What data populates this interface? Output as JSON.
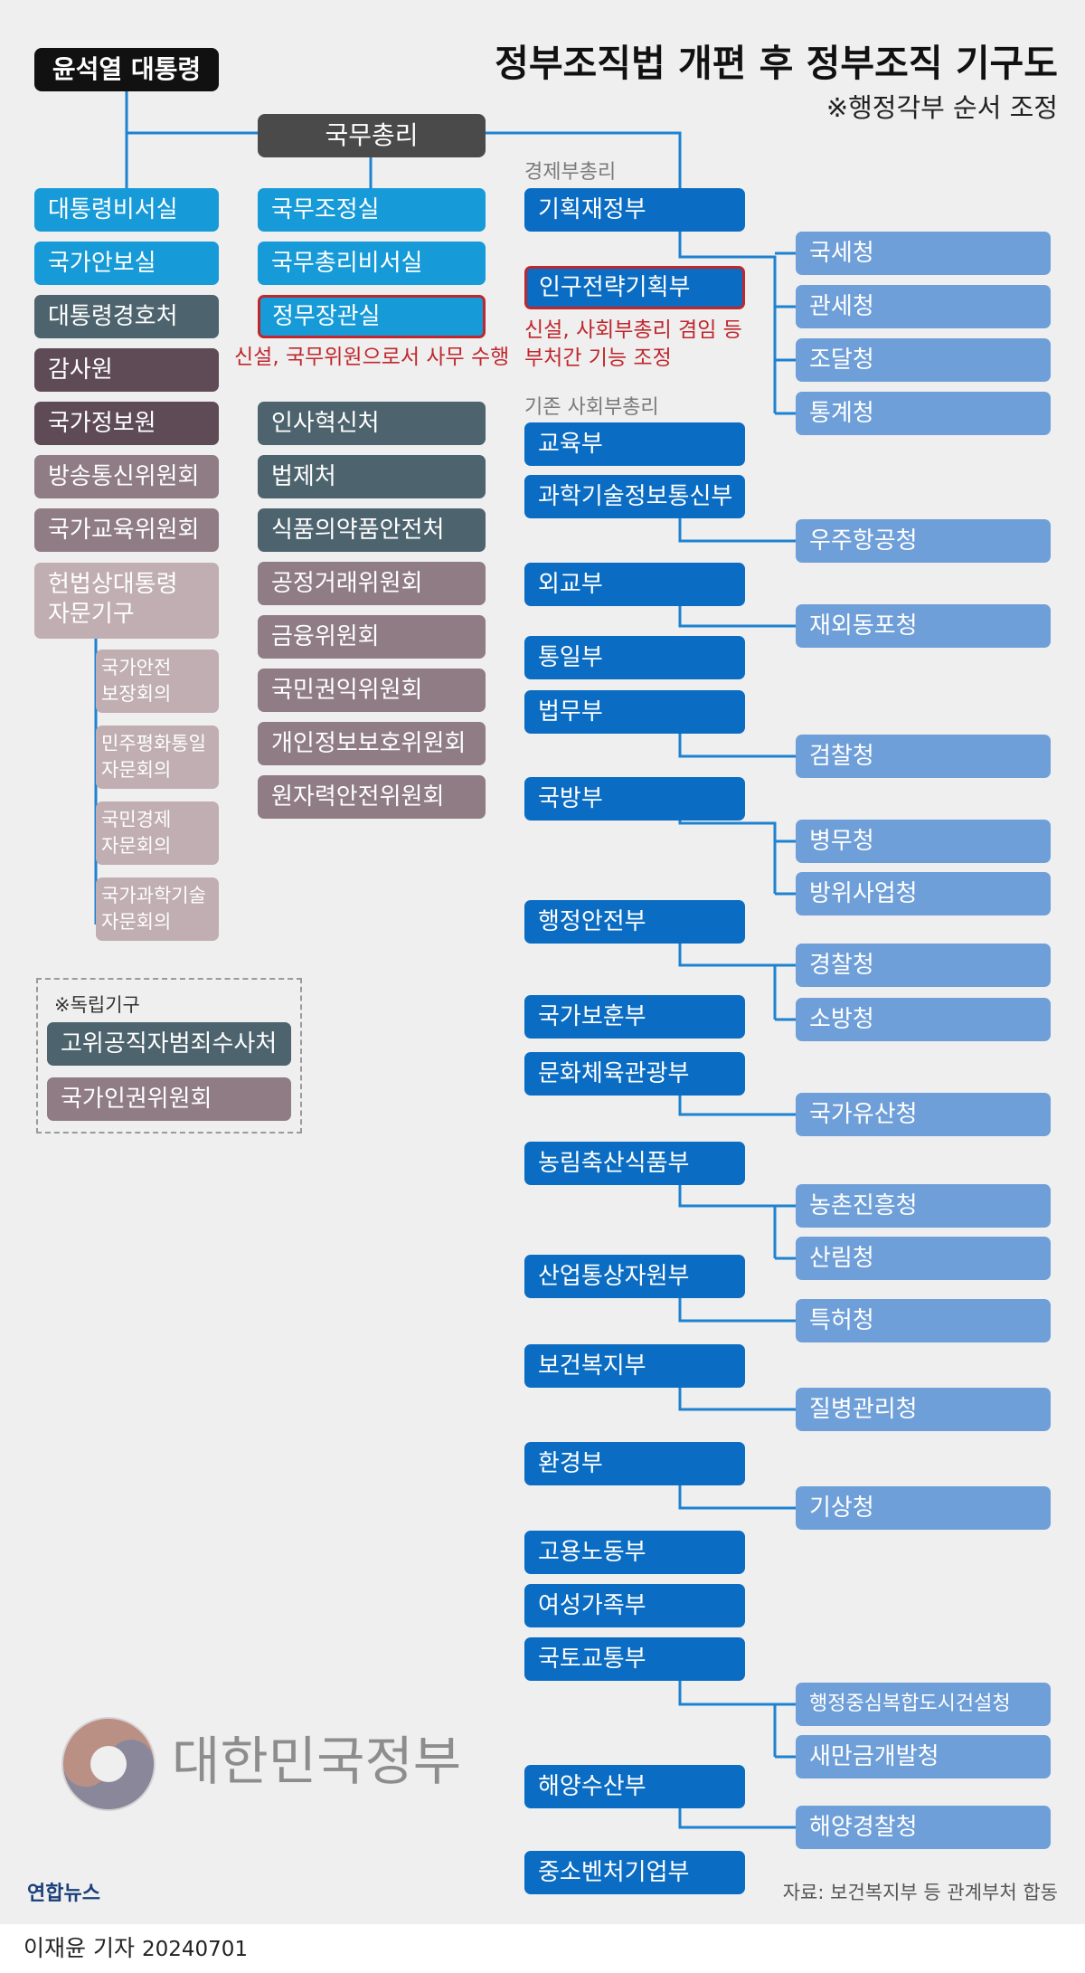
{
  "title": "정부조직법 개편 후 정부조직 기구도",
  "subtitle": "※행정각부 순서 조정",
  "president": "윤석열 대통령",
  "prime_minister": "국무총리",
  "presidential_units": {
    "secretariat": "대통령비서실",
    "national_security": "국가안보실",
    "security_service": "대통령경호처",
    "audit": "감사원",
    "intelligence": "국가정보원",
    "broadcasting": "방송통신위원회",
    "education_commission": "국가교육위원회"
  },
  "advisory": {
    "group": [
      "헌법상대통령",
      "자문기구"
    ],
    "security_council": [
      "국가안전",
      "보장회의"
    ],
    "unification_council": [
      "민주평화통일",
      "자문회의"
    ],
    "economic_council": [
      "국민경제",
      "자문회의"
    ],
    "science_council": [
      "국가과학기술",
      "자문회의"
    ]
  },
  "pm_units": {
    "coordination": "국무조정실",
    "pm_secretariat": "국무총리비서실",
    "political_affairs": "정무장관실",
    "political_affairs_note": "신설, 국무위원으로서 사무 수행",
    "personnel": "인사혁신처",
    "legislation": "법제처",
    "food_drug": "식품의약품안전처",
    "fair_trade": "공정거래위원회",
    "financial": "금융위원회",
    "civil_rights": "국민권익위원회",
    "privacy": "개인정보보호위원회",
    "nuclear": "원자력안전위원회"
  },
  "independent": {
    "label": "※독립기구",
    "cio": "고위공직자범죄수사처",
    "human_rights": "국가인권위원회"
  },
  "labels": {
    "econ_deputy": "경제부총리",
    "social_deputy": "기존 사회부총리"
  },
  "population_note": [
    "신설, 사회부총리 겸임 등",
    "부처간 기능 조정"
  ],
  "ministries": {
    "finance": "기획재정부",
    "population": "인구전략기획부",
    "education": "교육부",
    "science": "과학기술정보통신부",
    "foreign": "외교부",
    "unification": "통일부",
    "justice": "법무부",
    "defense": "국방부",
    "interior": "행정안전부",
    "veterans": "국가보훈부",
    "culture": "문화체육관광부",
    "agriculture": "농림축산식품부",
    "industry": "산업통상자원부",
    "health": "보건복지부",
    "environment": "환경부",
    "labor": "고용노동부",
    "gender": "여성가족부",
    "land": "국토교통부",
    "ocean": "해양수산부",
    "sme": "중소벤처기업부"
  },
  "agencies": {
    "tax": "국세청",
    "customs": "관세청",
    "procurement": "조달청",
    "statistics": "통계청",
    "aerospace": "우주항공청",
    "overseas_koreans": "재외동포청",
    "prosecution": "검찰청",
    "military_manpower": "병무청",
    "defense_acquisition": "방위사업청",
    "police": "경찰청",
    "fire": "소방청",
    "heritage": "국가유산청",
    "rural_development": "농촌진흥청",
    "forest": "산림청",
    "patent": "특허청",
    "disease_control": "질병관리청",
    "meteorological": "기상청",
    "admin_city": "행정중심복합도시건설청",
    "saemangeum": "새만금개발청",
    "coast_guard": "해양경찰청"
  },
  "footer": {
    "gov_brand": "대한민국정부",
    "agency_logo": "연합뉴스",
    "source": "자료: 보건복지부 등 관계부처 합동",
    "reporter": "이재윤 기자",
    "date": "20240701"
  },
  "colors": {
    "ministry": "#0a6cc2",
    "agency": "#6f9fd8",
    "pm_unit": "#169ad8",
    "connector": "#1e82d0",
    "highlight": "#c0272d",
    "slate": "#4d636d",
    "plum": "#5e4b55",
    "mauve": "#8f7c84",
    "pink": "#c0aeb2"
  }
}
